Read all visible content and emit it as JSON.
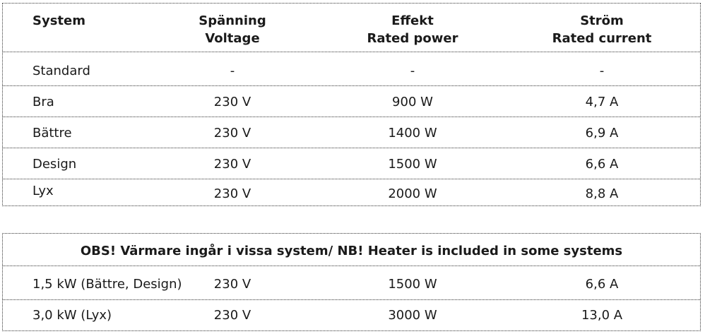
{
  "spec_table": {
    "headers": {
      "system": "System",
      "voltage_sv": "Spänning",
      "voltage_en": "Voltage",
      "power_sv": "Effekt",
      "power_en": "Rated power",
      "current_sv": "Ström",
      "current_en": "Rated current"
    },
    "rows": [
      {
        "system": "Standard",
        "voltage": "-",
        "power": "-",
        "current": "-"
      },
      {
        "system": "Bra",
        "voltage": "230 V",
        "power": "900 W",
        "current": "4,7 A"
      },
      {
        "system": "Bättre",
        "voltage": "230 V",
        "power": "1400 W",
        "current": "6,9 A"
      },
      {
        "system": "Design",
        "voltage": "230 V",
        "power": "1500 W",
        "current": "6,6 A"
      },
      {
        "system": "Lyx",
        "voltage": "230 V",
        "power": "2000 W",
        "current": "8,8 A"
      }
    ]
  },
  "heater_table": {
    "notice": "OBS! Värmare ingår i vissa system/ NB! Heater is included in some systems",
    "rows": [
      {
        "system": "1,5 kW (Bättre, Design)",
        "voltage": "230 V",
        "power": "1500 W",
        "current": "6,6 A"
      },
      {
        "system": "3,0 kW (Lyx)",
        "voltage": "230 V",
        "power": "3000 W",
        "current": "13,0 A"
      }
    ]
  }
}
